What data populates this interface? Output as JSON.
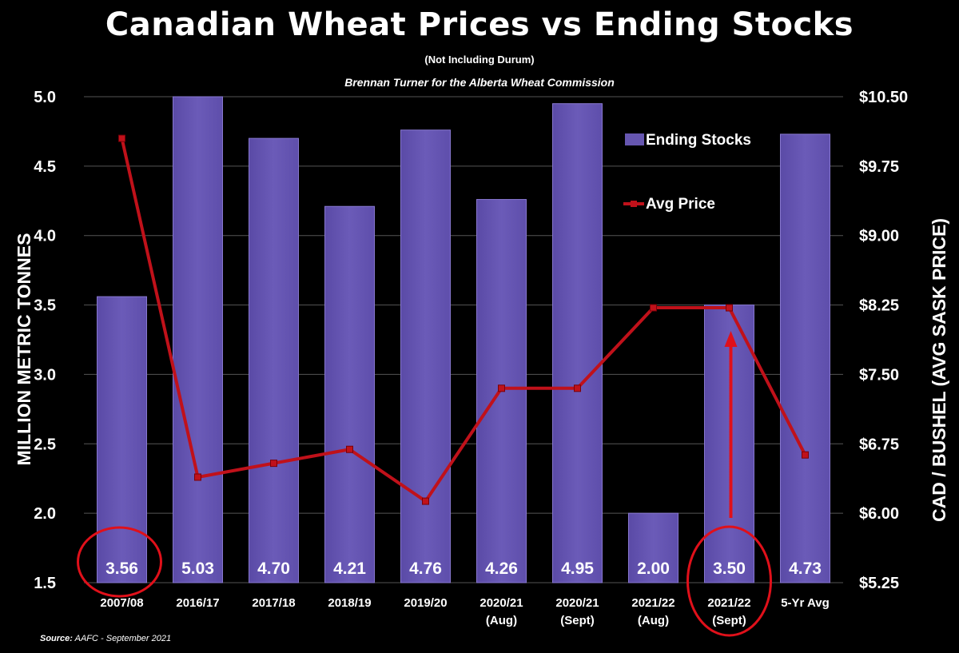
{
  "header": {
    "title": "Canadian Wheat Prices vs Ending Stocks",
    "subtitle": "(Not Including Durum)",
    "credit": "Brennan Turner for the Alberta Wheat Commission"
  },
  "footer": {
    "source_label": "Source:",
    "source_text": "AAFC - September 2021"
  },
  "colors": {
    "background": "#000000",
    "bar_fill": "#6656b0",
    "bar_edge": "#8878d0",
    "line": "#c0111a",
    "annotation": "#e0101a",
    "text": "#ffffff",
    "grid": "#555555"
  },
  "chart_data": {
    "type": "bar",
    "categories": [
      [
        "2007/08"
      ],
      [
        "2016/17"
      ],
      [
        "2017/18"
      ],
      [
        "2018/19"
      ],
      [
        "2019/20"
      ],
      [
        "2020/21",
        "(Aug)"
      ],
      [
        "2020/21",
        "(Sept)"
      ],
      [
        "2021/22",
        "(Aug)"
      ],
      [
        "2021/22",
        "(Sept)"
      ],
      [
        "5-Yr Avg"
      ]
    ],
    "series": [
      {
        "name": "Ending Stocks",
        "type": "bar",
        "axis": "left",
        "values": [
          3.56,
          5.03,
          4.7,
          4.21,
          4.76,
          4.26,
          4.95,
          2.0,
          3.5,
          4.73
        ],
        "labels": [
          "3.56",
          "5.03",
          "4.70",
          "4.21",
          "4.76",
          "4.26",
          "4.95",
          "2.00",
          "3.50",
          "4.73"
        ]
      },
      {
        "name": "Avg Price",
        "type": "line",
        "axis": "right",
        "values": [
          10.05,
          6.39,
          6.54,
          6.69,
          6.13,
          7.35,
          7.35,
          8.22,
          8.22,
          6.63
        ]
      }
    ],
    "ylabel": "MILLION METRIC TONNES",
    "y2label": "CAD / BUSHEL (AVG SASK PRICE)",
    "ylim": [
      1.5,
      5.0
    ],
    "yticks": [
      "1.5",
      "2.0",
      "2.5",
      "3.0",
      "3.5",
      "4.0",
      "4.5",
      "5.0"
    ],
    "y2lim": [
      5.25,
      10.5
    ],
    "y2ticks": [
      "$5.25",
      "$6.00",
      "$6.75",
      "$7.50",
      "$8.25",
      "$9.00",
      "$9.75",
      "$10.50"
    ],
    "grid": true,
    "legend": "top-right",
    "annotations": {
      "circled_categories": [
        0,
        8
      ],
      "arrow_category": 8
    }
  }
}
